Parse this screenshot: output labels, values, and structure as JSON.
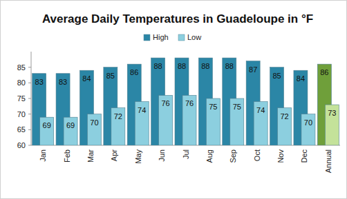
{
  "chart_data": {
    "type": "bar",
    "title": "Average Daily Temperatures in Guadeloupe in °F",
    "categories": [
      "Jan",
      "Feb",
      "Mar",
      "Apr",
      "May",
      "Jun",
      "Jul",
      "Aug",
      "Sep",
      "Oct",
      "Nov",
      "Dec",
      "Annual"
    ],
    "series": [
      {
        "name": "High",
        "color": "#2b86a6",
        "colors": [
          "#2b86a6",
          "#2b86a6",
          "#2b86a6",
          "#2b86a6",
          "#2b86a6",
          "#2b86a6",
          "#2b86a6",
          "#2b86a6",
          "#2b86a6",
          "#2b86a6",
          "#2b86a6",
          "#2b86a6",
          "#6f9f3a"
        ],
        "values": [
          83,
          83,
          84,
          85,
          86,
          88,
          88,
          88,
          88,
          87,
          85,
          84,
          86
        ]
      },
      {
        "name": "Low",
        "color": "#8ccfdf",
        "colors": [
          "#8ccfdf",
          "#8ccfdf",
          "#8ccfdf",
          "#8ccfdf",
          "#8ccfdf",
          "#8ccfdf",
          "#8ccfdf",
          "#8ccfdf",
          "#8ccfdf",
          "#8ccfdf",
          "#8ccfdf",
          "#8ccfdf",
          "#c4e29a"
        ],
        "values": [
          69,
          69,
          70,
          72,
          74,
          76,
          76,
          75,
          75,
          74,
          72,
          70,
          73
        ]
      }
    ],
    "ylim": [
      60,
      90
    ],
    "yticks": [
      60,
      65,
      70,
      75,
      80,
      85
    ],
    "grid": false,
    "legend": "top",
    "data_labels": true
  }
}
